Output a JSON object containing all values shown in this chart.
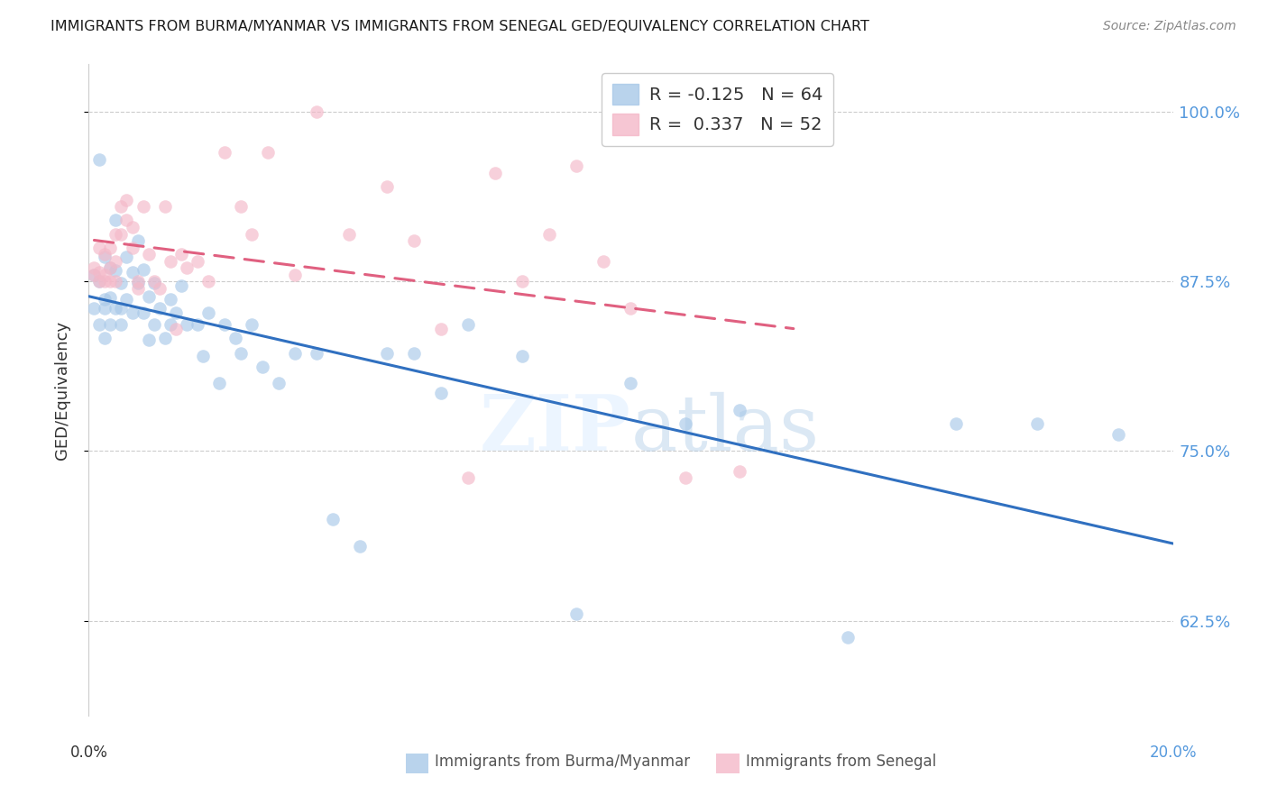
{
  "title": "IMMIGRANTS FROM BURMA/MYANMAR VS IMMIGRANTS FROM SENEGAL GED/EQUIVALENCY CORRELATION CHART",
  "source": "Source: ZipAtlas.com",
  "ylabel": "GED/Equivalency",
  "yticks": [
    0.625,
    0.75,
    0.875,
    1.0
  ],
  "ytick_labels": [
    "62.5%",
    "75.0%",
    "87.5%",
    "100.0%"
  ],
  "xlim": [
    0.0,
    0.2
  ],
  "ylim": [
    0.555,
    1.035
  ],
  "legend_r_blue": "-0.125",
  "legend_n_blue": "64",
  "legend_r_pink": "0.337",
  "legend_n_pink": "52",
  "blue_color": "#a8c8e8",
  "pink_color": "#f4b8c8",
  "blue_line_color": "#3070c0",
  "pink_line_color": "#e06080",
  "grid_color": "#cccccc",
  "watermark_color": "#d0e4f5",
  "right_label_color": "#5599dd",
  "blue_x": [
    0.001,
    0.001,
    0.002,
    0.002,
    0.003,
    0.003,
    0.003,
    0.003,
    0.004,
    0.004,
    0.004,
    0.005,
    0.005,
    0.005,
    0.006,
    0.006,
    0.007,
    0.007,
    0.008,
    0.008,
    0.009,
    0.009,
    0.01,
    0.01,
    0.011,
    0.011,
    0.012,
    0.012,
    0.013,
    0.014,
    0.015,
    0.015,
    0.016,
    0.017,
    0.018,
    0.02,
    0.021,
    0.022,
    0.024,
    0.025,
    0.027,
    0.028,
    0.03,
    0.032,
    0.035,
    0.038,
    0.042,
    0.045,
    0.05,
    0.055,
    0.06,
    0.065,
    0.07,
    0.08,
    0.09,
    0.1,
    0.11,
    0.12,
    0.14,
    0.16,
    0.175,
    0.19,
    0.002,
    0.006
  ],
  "blue_y": [
    0.88,
    0.855,
    0.875,
    0.843,
    0.893,
    0.862,
    0.855,
    0.833,
    0.885,
    0.863,
    0.843,
    0.92,
    0.883,
    0.855,
    0.874,
    0.843,
    0.893,
    0.862,
    0.882,
    0.852,
    0.905,
    0.874,
    0.884,
    0.852,
    0.864,
    0.832,
    0.874,
    0.843,
    0.855,
    0.833,
    0.862,
    0.843,
    0.852,
    0.872,
    0.843,
    0.843,
    0.82,
    0.852,
    0.8,
    0.843,
    0.833,
    0.822,
    0.843,
    0.812,
    0.8,
    0.822,
    0.822,
    0.7,
    0.68,
    0.822,
    0.822,
    0.793,
    0.843,
    0.82,
    0.63,
    0.8,
    0.77,
    0.78,
    0.613,
    0.77,
    0.77,
    0.762,
    0.965,
    0.855
  ],
  "pink_x": [
    0.001,
    0.001,
    0.002,
    0.002,
    0.002,
    0.003,
    0.003,
    0.003,
    0.004,
    0.004,
    0.004,
    0.005,
    0.005,
    0.005,
    0.006,
    0.006,
    0.007,
    0.007,
    0.008,
    0.008,
    0.009,
    0.009,
    0.01,
    0.011,
    0.012,
    0.013,
    0.014,
    0.015,
    0.016,
    0.017,
    0.018,
    0.02,
    0.022,
    0.025,
    0.028,
    0.03,
    0.033,
    0.038,
    0.042,
    0.048,
    0.055,
    0.06,
    0.065,
    0.07,
    0.075,
    0.08,
    0.085,
    0.09,
    0.095,
    0.1,
    0.11,
    0.12
  ],
  "pink_y": [
    0.885,
    0.88,
    0.9,
    0.882,
    0.875,
    0.895,
    0.88,
    0.875,
    0.9,
    0.885,
    0.875,
    0.91,
    0.89,
    0.875,
    0.93,
    0.91,
    0.935,
    0.92,
    0.915,
    0.9,
    0.875,
    0.87,
    0.93,
    0.895,
    0.875,
    0.87,
    0.93,
    0.89,
    0.84,
    0.895,
    0.885,
    0.89,
    0.875,
    0.97,
    0.93,
    0.91,
    0.97,
    0.88,
    1.0,
    0.91,
    0.945,
    0.905,
    0.84,
    0.73,
    0.955,
    0.875,
    0.91,
    0.96,
    0.89,
    0.855,
    0.73,
    0.735
  ]
}
